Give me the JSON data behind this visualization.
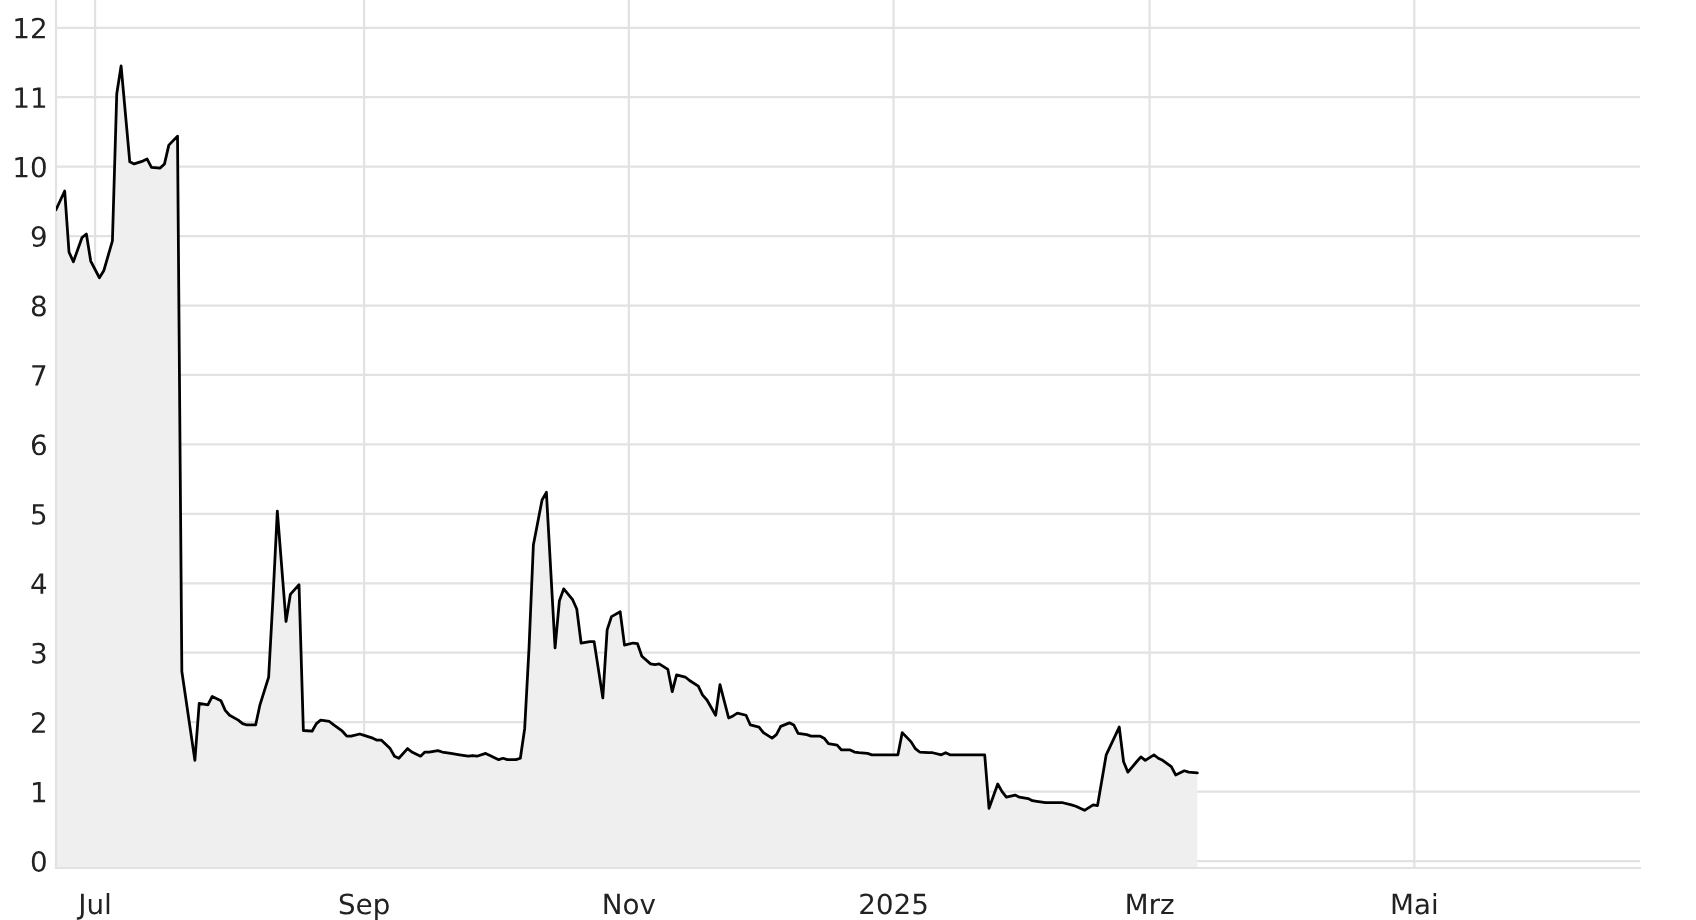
{
  "chart_data": {
    "type": "area",
    "color": "#efefef",
    "x": [
      "2024-06-22",
      "2024-06-24",
      "2024-06-25",
      "2024-06-26",
      "2024-06-28",
      "2024-06-29",
      "2024-06-30",
      "2024-07-02",
      "2024-07-03",
      "2024-07-05",
      "2024-07-06",
      "2024-07-07",
      "2024-07-09",
      "2024-07-10",
      "2024-07-12",
      "2024-07-13",
      "2024-07-14",
      "2024-07-16",
      "2024-07-17",
      "2024-07-18",
      "2024-07-20",
      "2024-07-21",
      "2024-07-24",
      "2024-07-25",
      "2024-07-27",
      "2024-07-28",
      "2024-07-30",
      "2024-07-31",
      "2024-08-01",
      "2024-08-03",
      "2024-08-04",
      "2024-08-05",
      "2024-08-07",
      "2024-08-08",
      "2024-08-10",
      "2024-08-11",
      "2024-08-12",
      "2024-08-14",
      "2024-08-15",
      "2024-08-17",
      "2024-08-18",
      "2024-08-20",
      "2024-08-21",
      "2024-08-22",
      "2024-08-24",
      "2024-08-25",
      "2024-08-27",
      "2024-08-28",
      "2024-08-29",
      "2024-08-31",
      "2024-09-01",
      "2024-09-03",
      "2024-09-04",
      "2024-09-05",
      "2024-09-07",
      "2024-09-08",
      "2024-09-09",
      "2024-09-11",
      "2024-09-12",
      "2024-09-14",
      "2024-09-15",
      "2024-09-16",
      "2024-09-18",
      "2024-09-19",
      "2024-09-21",
      "2024-09-22",
      "2024-09-23",
      "2024-09-25",
      "2024-09-26",
      "2024-09-27",
      "2024-09-29",
      "2024-09-30",
      "2024-10-02",
      "2024-10-03",
      "2024-10-04",
      "2024-10-06",
      "2024-10-07",
      "2024-10-08",
      "2024-10-09",
      "2024-10-10",
      "2024-10-12",
      "2024-10-13",
      "2024-10-15",
      "2024-10-16",
      "2024-10-17",
      "2024-10-19",
      "2024-10-20",
      "2024-10-21",
      "2024-10-23",
      "2024-10-24",
      "2024-10-26",
      "2024-10-27",
      "2024-10-28",
      "2024-10-30",
      "2024-10-31",
      "2024-11-02",
      "2024-11-03",
      "2024-11-04",
      "2024-11-06",
      "2024-11-07",
      "2024-11-08",
      "2024-11-10",
      "2024-11-11",
      "2024-11-12",
      "2024-11-14",
      "2024-11-15",
      "2024-11-17",
      "2024-11-18",
      "2024-11-19",
      "2024-11-21",
      "2024-11-22",
      "2024-11-24",
      "2024-11-25",
      "2024-11-26",
      "2024-11-28",
      "2024-11-29",
      "2024-12-01",
      "2024-12-02",
      "2024-12-04",
      "2024-12-05",
      "2024-12-06",
      "2024-12-08",
      "2024-12-09",
      "2024-12-10",
      "2024-12-12",
      "2024-12-13",
      "2024-12-15",
      "2024-12-16",
      "2024-12-17",
      "2024-12-19",
      "2024-12-20",
      "2024-12-22",
      "2024-12-23",
      "2024-12-24",
      "2024-12-26",
      "2024-12-27",
      "2024-12-29",
      "2024-12-30",
      "2025-01-01",
      "2025-01-02",
      "2025-01-03",
      "2025-01-05",
      "2025-01-06",
      "2025-01-07",
      "2025-01-09",
      "2025-01-10",
      "2025-01-12",
      "2025-01-13",
      "2025-01-14",
      "2025-01-16",
      "2025-01-19",
      "2025-01-22",
      "2025-01-23",
      "2025-01-25",
      "2025-01-26",
      "2025-01-27",
      "2025-01-29",
      "2025-01-30",
      "2025-02-01",
      "2025-02-02",
      "2025-02-03",
      "2025-02-05",
      "2025-02-08",
      "2025-02-09",
      "2025-02-11",
      "2025-02-12",
      "2025-02-14",
      "2025-02-16",
      "2025-02-17",
      "2025-02-19",
      "2025-02-22",
      "2025-02-23",
      "2025-02-24",
      "2025-02-26",
      "2025-02-27",
      "2025-02-28",
      "2025-03-02",
      "2025-03-03",
      "2025-03-04",
      "2025-03-06",
      "2025-03-07",
      "2025-03-09",
      "2025-03-10",
      "2025-03-12"
    ],
    "values": [
      9.38,
      9.65,
      8.77,
      8.63,
      8.98,
      9.03,
      8.64,
      8.4,
      8.5,
      8.93,
      11.05,
      11.45,
      10.07,
      10.04,
      10.08,
      10.11,
      9.99,
      9.98,
      10.04,
      10.31,
      10.44,
      2.73,
      1.45,
      2.27,
      2.25,
      2.37,
      2.31,
      2.17,
      2.1,
      2.03,
      1.98,
      1.96,
      1.96,
      2.25,
      2.65,
      3.79,
      5.04,
      3.45,
      3.84,
      3.98,
      1.88,
      1.87,
      1.98,
      2.03,
      2.01,
      1.96,
      1.87,
      1.8,
      1.8,
      1.83,
      1.81,
      1.77,
      1.74,
      1.74,
      1.62,
      1.51,
      1.48,
      1.62,
      1.57,
      1.51,
      1.57,
      1.57,
      1.59,
      1.57,
      1.55,
      1.54,
      1.53,
      1.51,
      1.52,
      1.51,
      1.55,
      1.52,
      1.46,
      1.48,
      1.46,
      1.46,
      1.48,
      1.91,
      3.07,
      4.55,
      5.2,
      5.31,
      3.07,
      3.75,
      3.92,
      3.77,
      3.63,
      3.14,
      3.16,
      3.16,
      2.35,
      3.33,
      3.52,
      3.59,
      3.11,
      3.14,
      3.13,
      2.95,
      2.84,
      2.83,
      2.84,
      2.76,
      2.44,
      2.68,
      2.65,
      2.6,
      2.52,
      2.39,
      2.32,
      2.1,
      2.54,
      2.06,
      2.09,
      2.13,
      2.1,
      1.96,
      1.93,
      1.85,
      1.77,
      1.82,
      1.94,
      1.99,
      1.96,
      1.84,
      1.82,
      1.8,
      1.8,
      1.77,
      1.69,
      1.67,
      1.6,
      1.6,
      1.57,
      1.56,
      1.55,
      1.53,
      1.53,
      1.53,
      1.53,
      1.53,
      1.85,
      1.72,
      1.62,
      1.57,
      1.56,
      1.56,
      1.53,
      1.56,
      1.53,
      1.53,
      1.53,
      1.53,
      0.76,
      1.11,
      1.0,
      0.92,
      0.95,
      0.92,
      0.9,
      0.87,
      0.86,
      0.84,
      0.84,
      0.84,
      0.81,
      0.79,
      0.73,
      0.81,
      0.8,
      1.53,
      1.93,
      1.43,
      1.28,
      1.43,
      1.5,
      1.45,
      1.53,
      1.48,
      1.45,
      1.36,
      1.24,
      1.3,
      1.28,
      1.27
    ],
    "xlim": [
      "2024-06-22",
      "2025-06-22"
    ],
    "xticks": [
      {
        "value": "2024-07-01",
        "label": "Jul"
      },
      {
        "value": "2024-09-01",
        "label": "Sep"
      },
      {
        "value": "2024-11-01",
        "label": "Nov"
      },
      {
        "value": "2025-01-01",
        "label": "2025"
      },
      {
        "value": "2025-03-01",
        "label": "Mrz"
      },
      {
        "value": "2025-05-01",
        "label": "Mai"
      }
    ],
    "ylim": [
      -0.1,
      12.4
    ],
    "yticks": [
      0,
      1,
      2,
      3,
      4,
      5,
      6,
      7,
      8,
      9,
      10,
      11,
      12
    ],
    "grid": true
  }
}
